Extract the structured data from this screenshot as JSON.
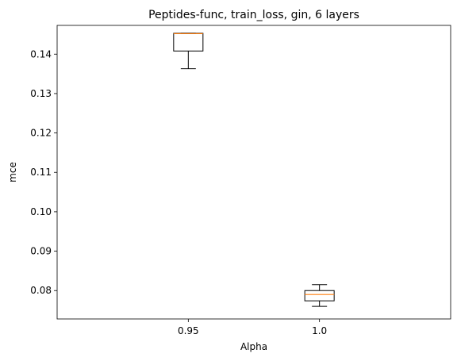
{
  "chart_data": {
    "type": "box",
    "title": "Peptides-func, train_loss, gin, 6 layers",
    "xlabel": "Alpha",
    "ylabel": "mce",
    "categories": [
      "0.95",
      "1.0"
    ],
    "ylim": [
      0.0728,
      0.1473
    ],
    "yticks": [
      "0.08",
      "0.09",
      "0.10",
      "0.11",
      "0.12",
      "0.13",
      "0.14"
    ],
    "yticks_values": [
      0.08,
      0.09,
      0.1,
      0.11,
      0.12,
      0.13,
      0.14
    ],
    "boxes": [
      {
        "category": "0.95",
        "whisker_low": 0.1363,
        "q1": 0.1408,
        "median": 0.1452,
        "q3": 0.1453,
        "whisker_high": 0.1453
      },
      {
        "category": "1.0",
        "whisker_low": 0.076,
        "q1": 0.0774,
        "median": 0.079,
        "q3": 0.08,
        "whisker_high": 0.0815
      }
    ],
    "colors": {
      "box": "#000000",
      "median": "#ff7f0e"
    },
    "grid": false,
    "legend": "none"
  }
}
